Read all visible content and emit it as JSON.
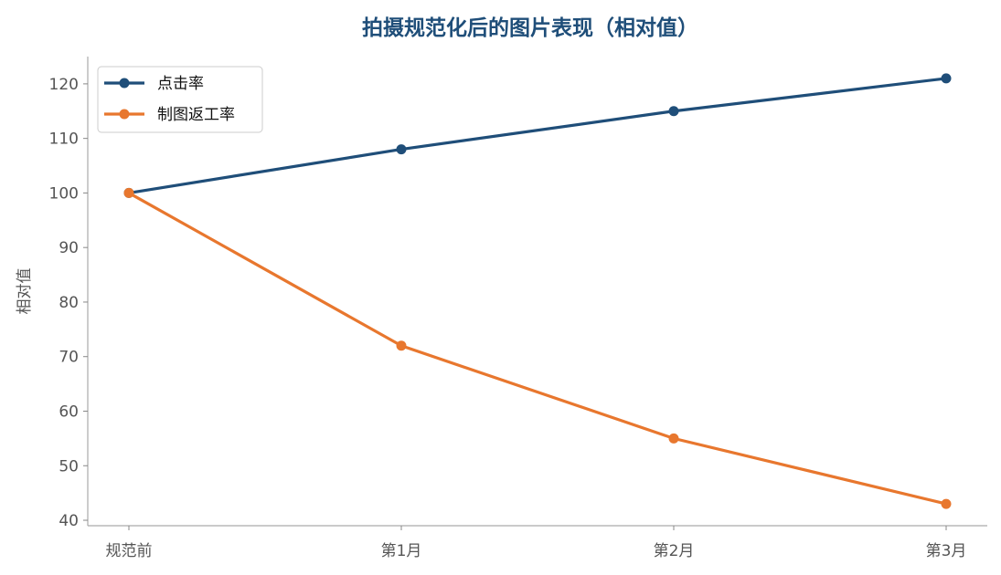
{
  "chart_data": {
    "type": "line",
    "title": "拍摄规范化后的图片表现（相对值）",
    "xlabel": "",
    "ylabel": "相对值",
    "categories": [
      "规范前",
      "第1月",
      "第2月",
      "第3月"
    ],
    "series": [
      {
        "name": "点击率",
        "values": [
          100,
          108,
          115,
          121
        ],
        "color": "#1f4e79"
      },
      {
        "name": "制图返工率",
        "values": [
          100,
          72,
          55,
          43
        ],
        "color": "#e8772e"
      }
    ],
    "ylim": [
      39,
      125
    ],
    "yticks": [
      40,
      50,
      60,
      70,
      80,
      90,
      100,
      110,
      120
    ],
    "grid": false,
    "legend_position": "top-left",
    "title_color": "#1f4e79"
  }
}
